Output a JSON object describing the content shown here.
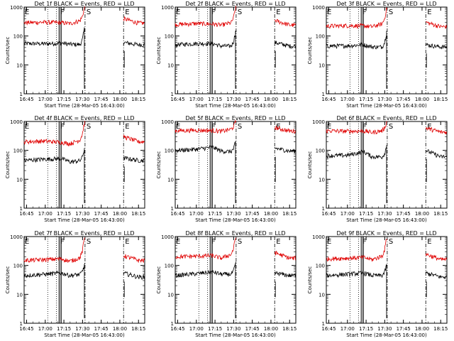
{
  "figure": {
    "ylabel": "Counts/sec",
    "xlabel": "Start Time (28-Mar-05 16:43:00)",
    "xticks": [
      "16:45",
      "17:00",
      "17:15",
      "17:30",
      "17:45",
      "18:00",
      "18:15"
    ],
    "yticks": [
      "1",
      "10",
      "100",
      "1000"
    ],
    "colors": {
      "events": "#000000",
      "lld": "#e00000"
    }
  },
  "chart_data": [
    {
      "type": "line",
      "title": "Det 1f BLACK = Events, RED = LLD",
      "ylim": [
        1,
        1000
      ],
      "yscale": "log",
      "markers": [
        {
          "label": "E",
          "x": "16:43"
        },
        {
          "label": "F",
          "x": "17:11"
        },
        {
          "label": "S",
          "x": "17:32"
        },
        {
          "label": "E",
          "x": "18:03"
        }
      ],
      "series": [
        {
          "name": "BLACK = Events",
          "color": "#000000",
          "points": [
            [
              "16:43",
              55
            ],
            [
              "17:00",
              54
            ],
            [
              "17:13",
              57
            ],
            [
              "17:20",
              52
            ],
            [
              "17:30",
              50
            ],
            [
              "17:32",
              200
            ],
            [
              "18:03",
              60
            ],
            [
              "18:15",
              50
            ]
          ]
        },
        {
          "name": "RED = LLD",
          "color": "#e00000",
          "points": [
            [
              "16:43",
              290
            ],
            [
              "17:00",
              300
            ],
            [
              "17:13",
              290
            ],
            [
              "17:20",
              270
            ],
            [
              "17:30",
              360
            ],
            [
              "17:32",
              1000
            ],
            [
              "18:03",
              400
            ],
            [
              "18:15",
              280
            ]
          ]
        }
      ]
    },
    {
      "type": "line",
      "title": "Det 2f BLACK = Events, RED = LLD",
      "ylim": [
        1,
        1000
      ],
      "yscale": "log",
      "markers": [
        {
          "label": "E",
          "x": "16:43"
        },
        {
          "label": "F",
          "x": "17:11"
        },
        {
          "label": "S",
          "x": "17:32"
        },
        {
          "label": "E",
          "x": "18:03"
        }
      ],
      "series": [
        {
          "name": "BLACK = Events",
          "color": "#000000",
          "points": [
            [
              "16:43",
              50
            ],
            [
              "17:00",
              55
            ],
            [
              "17:13",
              55
            ],
            [
              "17:20",
              45
            ],
            [
              "17:30",
              45
            ],
            [
              "17:32",
              150
            ],
            [
              "18:03",
              60
            ],
            [
              "18:15",
              45
            ]
          ]
        },
        {
          "name": "RED = LLD",
          "color": "#e00000",
          "points": [
            [
              "16:43",
              250
            ],
            [
              "17:00",
              270
            ],
            [
              "17:13",
              260
            ],
            [
              "17:20",
              240
            ],
            [
              "17:30",
              300
            ],
            [
              "17:32",
              1000
            ],
            [
              "18:03",
              350
            ],
            [
              "18:15",
              240
            ]
          ]
        }
      ]
    },
    {
      "type": "line",
      "title": "Det 3f BLACK = Events, RED = LLD",
      "ylim": [
        1,
        1000
      ],
      "yscale": "log",
      "markers": [
        {
          "label": "E",
          "x": "16:43"
        },
        {
          "label": "F",
          "x": "17:11"
        },
        {
          "label": "S",
          "x": "17:32"
        },
        {
          "label": "E",
          "x": "18:03"
        }
      ],
      "series": [
        {
          "name": "BLACK = Events",
          "color": "#000000",
          "points": [
            [
              "16:43",
              45
            ],
            [
              "17:00",
              46
            ],
            [
              "17:13",
              50
            ],
            [
              "17:20",
              42
            ],
            [
              "17:30",
              42
            ],
            [
              "17:32",
              150
            ],
            [
              "18:03",
              50
            ],
            [
              "18:15",
              42
            ]
          ]
        },
        {
          "name": "RED = LLD",
          "color": "#e00000",
          "points": [
            [
              "16:43",
              220
            ],
            [
              "17:00",
              230
            ],
            [
              "17:13",
              225
            ],
            [
              "17:20",
              210
            ],
            [
              "17:30",
              280
            ],
            [
              "17:32",
              1000
            ],
            [
              "18:03",
              300
            ],
            [
              "18:15",
              210
            ]
          ]
        }
      ]
    },
    {
      "type": "line",
      "title": "Det 4f BLACK = Events, RED = LLD",
      "ylim": [
        1,
        1000
      ],
      "yscale": "log",
      "markers": [
        {
          "label": "E",
          "x": "16:43"
        },
        {
          "label": "F",
          "x": "17:11"
        },
        {
          "label": "S",
          "x": "17:32"
        },
        {
          "label": "E",
          "x": "18:03"
        }
      ],
      "series": [
        {
          "name": "BLACK = Events",
          "color": "#000000",
          "points": [
            [
              "16:43",
              45
            ],
            [
              "17:00",
              50
            ],
            [
              "17:13",
              52
            ],
            [
              "17:20",
              40
            ],
            [
              "17:30",
              45
            ],
            [
              "17:32",
              120
            ],
            [
              "18:03",
              55
            ],
            [
              "18:15",
              45
            ]
          ]
        },
        {
          "name": "RED = LLD",
          "color": "#e00000",
          "points": [
            [
              "16:43",
              200
            ],
            [
              "17:00",
              210
            ],
            [
              "17:13",
              190
            ],
            [
              "17:20",
              170
            ],
            [
              "17:30",
              250
            ],
            [
              "17:32",
              1000
            ],
            [
              "18:03",
              300
            ],
            [
              "18:15",
              200
            ]
          ]
        }
      ]
    },
    {
      "type": "line",
      "title": "Det 5f BLACK = Events, RED = LLD",
      "ylim": [
        1,
        1000
      ],
      "yscale": "log",
      "markers": [
        {
          "label": "E",
          "x": "16:43"
        },
        {
          "label": "F",
          "x": "17:11"
        },
        {
          "label": "S",
          "x": "17:32"
        },
        {
          "label": "E",
          "x": "18:03"
        }
      ],
      "series": [
        {
          "name": "BLACK = Events",
          "color": "#000000",
          "points": [
            [
              "16:43",
              100
            ],
            [
              "17:00",
              110
            ],
            [
              "17:13",
              130
            ],
            [
              "17:20",
              95
            ],
            [
              "17:30",
              90
            ],
            [
              "17:32",
              200
            ],
            [
              "18:03",
              120
            ],
            [
              "18:15",
              95
            ]
          ]
        },
        {
          "name": "RED = LLD",
          "color": "#e00000",
          "points": [
            [
              "16:43",
              480
            ],
            [
              "17:00",
              500
            ],
            [
              "17:13",
              490
            ],
            [
              "17:20",
              460
            ],
            [
              "17:30",
              560
            ],
            [
              "17:32",
              1000
            ],
            [
              "18:03",
              620
            ],
            [
              "18:15",
              470
            ]
          ]
        }
      ]
    },
    {
      "type": "line",
      "title": "Det 6f BLACK = Events, RED = LLD",
      "ylim": [
        1,
        1000
      ],
      "yscale": "log",
      "markers": [
        {
          "label": "E",
          "x": "16:43"
        },
        {
          "label": "F",
          "x": "17:11"
        },
        {
          "label": "S",
          "x": "17:32"
        },
        {
          "label": "E",
          "x": "18:03"
        }
      ],
      "series": [
        {
          "name": "BLACK = Events",
          "color": "#000000",
          "points": [
            [
              "16:43",
              65
            ],
            [
              "17:00",
              68
            ],
            [
              "17:13",
              90
            ],
            [
              "17:20",
              60
            ],
            [
              "17:30",
              60
            ],
            [
              "17:32",
              150
            ],
            [
              "18:03",
              100
            ],
            [
              "18:15",
              60
            ]
          ]
        },
        {
          "name": "RED = LLD",
          "color": "#e00000",
          "points": [
            [
              "16:43",
              480
            ],
            [
              "17:00",
              460
            ],
            [
              "17:13",
              470
            ],
            [
              "17:20",
              420
            ],
            [
              "17:30",
              500
            ],
            [
              "17:32",
              1000
            ],
            [
              "18:03",
              600
            ],
            [
              "18:15",
              430
            ]
          ]
        }
      ]
    },
    {
      "type": "line",
      "title": "Det 7f BLACK = Events, RED = LLD",
      "ylim": [
        1,
        1000
      ],
      "yscale": "log",
      "markers": [
        {
          "label": "E",
          "x": "16:43"
        },
        {
          "label": "F",
          "x": "17:11"
        },
        {
          "label": "S",
          "x": "17:32"
        },
        {
          "label": "E",
          "x": "18:03"
        }
      ],
      "series": [
        {
          "name": "BLACK = Events",
          "color": "#000000",
          "points": [
            [
              "16:43",
              45
            ],
            [
              "17:00",
              50
            ],
            [
              "17:13",
              55
            ],
            [
              "17:20",
              45
            ],
            [
              "17:30",
              50
            ],
            [
              "17:32",
              110
            ],
            [
              "18:03",
              55
            ],
            [
              "18:15",
              40
            ]
          ]
        },
        {
          "name": "RED = LLD",
          "color": "#e00000",
          "points": [
            [
              "16:43",
              150
            ],
            [
              "17:00",
              160
            ],
            [
              "17:13",
              170
            ],
            [
              "17:20",
              140
            ],
            [
              "17:30",
              200
            ],
            [
              "17:32",
              1000
            ],
            [
              "18:03",
              220
            ],
            [
              "18:15",
              150
            ]
          ]
        }
      ]
    },
    {
      "type": "line",
      "title": "Det 8f BLACK = Events, RED = LLD",
      "ylim": [
        1,
        1000
      ],
      "yscale": "log",
      "markers": [
        {
          "label": "E",
          "x": "16:43"
        },
        {
          "label": "F",
          "x": "17:11"
        },
        {
          "label": "S",
          "x": "17:32"
        },
        {
          "label": "E",
          "x": "18:03"
        }
      ],
      "series": [
        {
          "name": "BLACK = Events",
          "color": "#000000",
          "points": [
            [
              "16:43",
              45
            ],
            [
              "17:00",
              52
            ],
            [
              "17:13",
              60
            ],
            [
              "17:20",
              50
            ],
            [
              "17:30",
              50
            ],
            [
              "17:32",
              120
            ],
            [
              "18:03",
              55
            ],
            [
              "18:15",
              45
            ]
          ]
        },
        {
          "name": "RED = LLD",
          "color": "#e00000",
          "points": [
            [
              "16:43",
              200
            ],
            [
              "17:00",
              210
            ],
            [
              "17:13",
              220
            ],
            [
              "17:20",
              180
            ],
            [
              "17:30",
              260
            ],
            [
              "17:32",
              1000
            ],
            [
              "18:03",
              280
            ],
            [
              "18:15",
              180
            ]
          ]
        }
      ]
    },
    {
      "type": "line",
      "title": "Det 9f BLACK = Events, RED = LLD",
      "ylim": [
        1,
        1000
      ],
      "yscale": "log",
      "markers": [
        {
          "label": "E",
          "x": "16:43"
        },
        {
          "label": "F",
          "x": "17:11"
        },
        {
          "label": "S",
          "x": "17:32"
        },
        {
          "label": "E",
          "x": "18:03"
        }
      ],
      "series": [
        {
          "name": "BLACK = Events",
          "color": "#000000",
          "points": [
            [
              "16:43",
              45
            ],
            [
              "17:00",
              50
            ],
            [
              "17:13",
              55
            ],
            [
              "17:20",
              45
            ],
            [
              "17:30",
              45
            ],
            [
              "17:32",
              110
            ],
            [
              "18:03",
              55
            ],
            [
              "18:15",
              40
            ]
          ]
        },
        {
          "name": "RED = LLD",
          "color": "#e00000",
          "points": [
            [
              "16:43",
              170
            ],
            [
              "17:00",
              180
            ],
            [
              "17:13",
              190
            ],
            [
              "17:20",
              160
            ],
            [
              "17:30",
              230
            ],
            [
              "17:32",
              1000
            ],
            [
              "18:03",
              250
            ],
            [
              "18:15",
              160
            ]
          ]
        }
      ]
    }
  ]
}
